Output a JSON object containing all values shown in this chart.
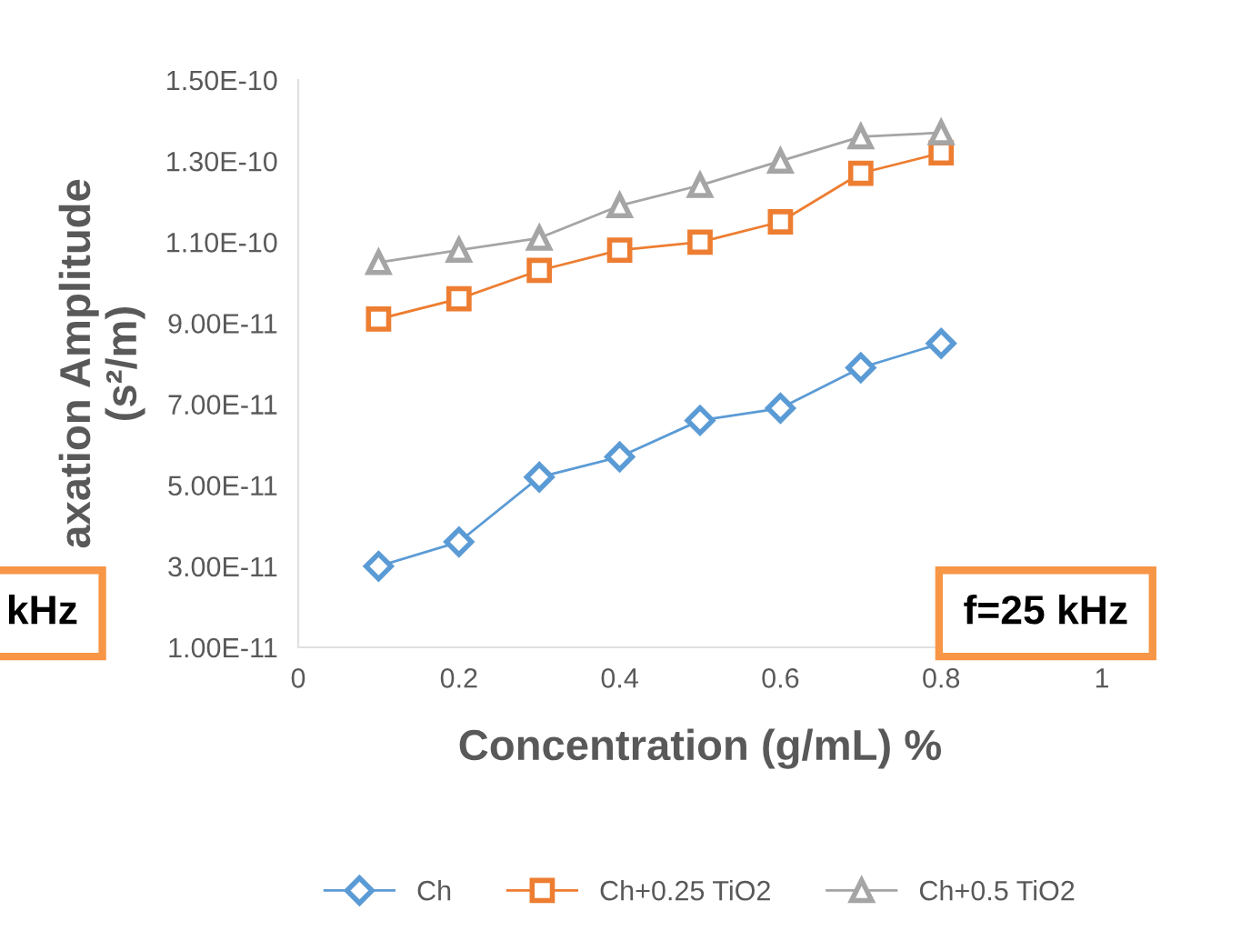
{
  "chart_data": {
    "type": "line",
    "xlabel": "Concentration (g/mL) %",
    "ylabel": "axation Amplitude\n(s²/m)",
    "x": [
      0.1,
      0.2,
      0.3,
      0.4,
      0.5,
      0.6,
      0.7,
      0.8
    ],
    "series": [
      {
        "name": "Ch",
        "color": "#5b9bd5",
        "marker": "diamond",
        "values": [
          3e-11,
          3.6e-11,
          5.2e-11,
          5.7e-11,
          6.6e-11,
          6.9e-11,
          7.9e-11,
          8.5e-11
        ]
      },
      {
        "name": "Ch+0.25 TiO2",
        "color": "#ed7d31",
        "marker": "square",
        "values": [
          9.1e-11,
          9.6e-11,
          1.03e-10,
          1.08e-10,
          1.1e-10,
          1.15e-10,
          1.27e-10,
          1.32e-10
        ]
      },
      {
        "name": "Ch+0.5 TiO2",
        "color": "#a5a5a5",
        "marker": "triangle",
        "values": [
          1.05e-10,
          1.08e-10,
          1.11e-10,
          1.19e-10,
          1.24e-10,
          1.3e-10,
          1.36e-10,
          1.37e-10
        ]
      }
    ],
    "xlim": [
      0,
      1
    ],
    "xticks": [
      0,
      0.2,
      0.4,
      0.6,
      0.8,
      1
    ],
    "ylim": [
      1e-11,
      1.5e-10
    ],
    "yticks": [
      {
        "value": 1e-11,
        "label": "1.00E-11"
      },
      {
        "value": 3e-11,
        "label": "3.00E-11"
      },
      {
        "value": 5e-11,
        "label": "5.00E-11"
      },
      {
        "value": 7e-11,
        "label": "7.00E-11"
      },
      {
        "value": 9e-11,
        "label": "9.00E-11"
      },
      {
        "value": 1.1e-10,
        "label": "1.10E-10"
      },
      {
        "value": 1.3e-10,
        "label": "1.30E-10"
      },
      {
        "value": 1.5e-10,
        "label": "1.50E-10"
      }
    ],
    "grid": false,
    "legend": "bottom",
    "line_style": "solid",
    "annotations": [
      "kHz",
      "f=25 kHz"
    ]
  }
}
